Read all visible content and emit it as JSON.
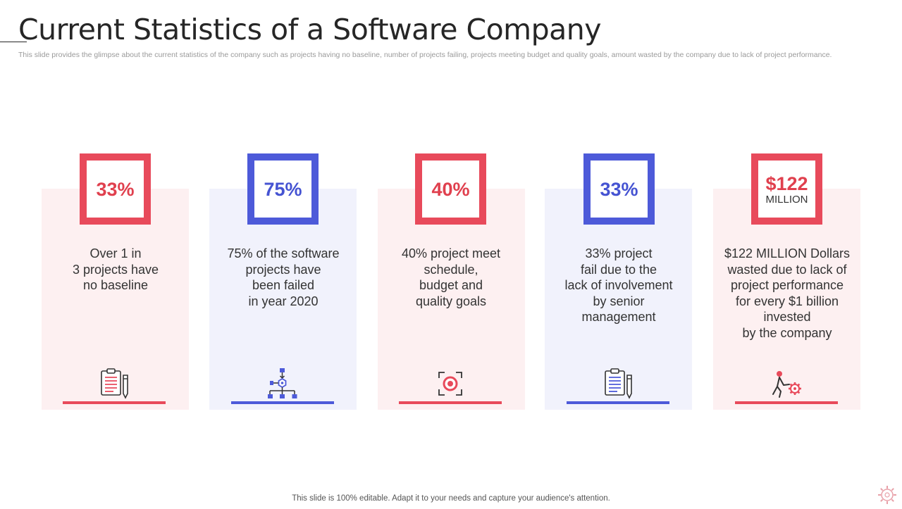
{
  "title": "Current Statistics of a Software Company",
  "subtitle": "This slide provides the glimpse about the current statistics of the company such as projects having no baseline, number of projects failing, projects meeting budget and quality goals, amount wasted by the company due to lack of project performance.",
  "colors": {
    "red": "#e84a5b",
    "blue": "#4d5ad9",
    "red_tint": "#fdf0f1",
    "blue_tint": "#f1f2fc"
  },
  "cards": [
    {
      "accent": "red",
      "value": "33%",
      "unit": "",
      "icon": "clipboard-pen-icon",
      "lines": [
        "Over 1 in",
        "3 projects have",
        "no baseline"
      ]
    },
    {
      "accent": "blue",
      "value": "75%",
      "unit": "",
      "icon": "hierarchy-network-icon",
      "lines": [
        "75% of the software",
        "projects have",
        "been failed",
        "in year 2020"
      ]
    },
    {
      "accent": "red",
      "value": "40%",
      "unit": "",
      "icon": "target-focus-icon",
      "lines": [
        "40% project meet",
        "schedule,",
        "budget and",
        "quality goals"
      ]
    },
    {
      "accent": "blue",
      "value": "33%",
      "unit": "",
      "icon": "clipboard-pen-icon",
      "lines": [
        "33% project",
        "fail due to the",
        "lack of involvement",
        "by senior",
        "management"
      ]
    },
    {
      "accent": "red",
      "value": "$122",
      "unit": "MILLION",
      "icon": "person-pushing-gear-icon",
      "lines": [
        "$122 MILLION Dollars",
        "wasted due to lack of",
        "project performance",
        "for every $1 billion",
        "invested",
        "by the company"
      ]
    }
  ],
  "footer": "This slide is 100% editable. Adapt it to your needs and capture your audience's attention.",
  "logo_icon": "gear-logo-icon"
}
